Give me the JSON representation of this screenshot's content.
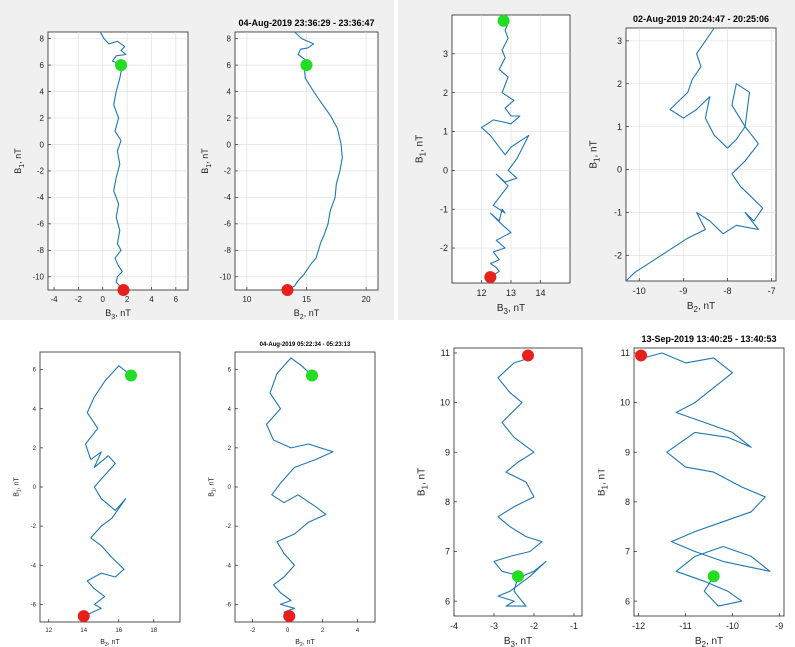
{
  "colors": {
    "trace": "#1f77b4",
    "start_marker": "#22dd22",
    "end_marker": "#e8201c",
    "grid": "#dcdcdc",
    "frame": "#262626"
  },
  "chart_data": [
    {
      "type": "line",
      "title": "",
      "xlabel": "B3, nT",
      "x_axis_base": "B",
      "x_axis_sub": "3",
      "x_axis_unit": ", nT",
      "ylabel": "B1, nT",
      "y_axis_base": "B",
      "y_axis_sub": "1",
      "y_axis_unit": ", nT",
      "xlim": [
        -4.5,
        7
      ],
      "ylim": [
        -11,
        8.5
      ],
      "xticks": [
        "-4",
        "-2",
        "0",
        "2",
        "4",
        "6"
      ],
      "xtick_values": [
        -4,
        -2,
        0,
        2,
        4,
        6
      ],
      "yticks": [
        "-10",
        "-8",
        "-6",
        "-4",
        "-2",
        "0",
        "2",
        "4",
        "6",
        "8"
      ],
      "ytick_values": [
        -10,
        -8,
        -6,
        -4,
        -2,
        0,
        2,
        4,
        6,
        8
      ],
      "grid": true,
      "series": [
        {
          "x": [
            -0.2,
            0.1,
            0.5,
            1.2,
            1.8,
            1.5,
            1.9,
            1.1,
            0.8,
            1.6,
            1.4,
            1.1,
            0.9,
            1.3,
            1.0,
            1.5,
            1.2,
            1.4,
            1.1,
            0.9,
            1.3,
            1.1,
            1.4,
            1.2,
            1.5,
            1.0,
            1.3,
            1.6,
            1.2,
            1.1,
            1.5,
            1.7
          ],
          "y": [
            8.5,
            8.0,
            7.6,
            7.8,
            7.4,
            7.1,
            6.8,
            6.7,
            6.3,
            6.0,
            5.0,
            4.0,
            3.0,
            2.0,
            1.0,
            0.3,
            -0.5,
            -1.5,
            -2.5,
            -3.5,
            -4.5,
            -5.5,
            -6.5,
            -7.5,
            -8.0,
            -8.6,
            -9.2,
            -9.6,
            -10.0,
            -10.4,
            -10.8,
            -11.1
          ]
        }
      ],
      "start_point": [
        1.5,
        6.0
      ],
      "end_point": [
        1.7,
        -11.0
      ]
    },
    {
      "type": "line",
      "title": "04-Aug-2019 23:36:29 - 23:36:47",
      "xlabel": "B2, nT",
      "x_axis_base": "B",
      "x_axis_sub": "2",
      "x_axis_unit": ", nT",
      "ylabel": "B1, nT",
      "y_axis_base": "B",
      "y_axis_sub": "1",
      "y_axis_unit": ", nT",
      "xlim": [
        9,
        21
      ],
      "ylim": [
        -11,
        8.5
      ],
      "xticks": [
        "10",
        "15",
        "20"
      ],
      "xtick_values": [
        10,
        15,
        20
      ],
      "yticks": [
        "-10",
        "-8",
        "-6",
        "-4",
        "-2",
        "0",
        "2",
        "4",
        "6",
        "8"
      ],
      "ytick_values": [
        -10,
        -8,
        -6,
        -4,
        -2,
        0,
        2,
        4,
        6,
        8
      ],
      "grid": true,
      "series": [
        {
          "x": [
            14.0,
            14.6,
            15.6,
            15.1,
            14.5,
            14.3,
            15.2,
            14.8,
            14.9,
            15.6,
            16.2,
            17.0,
            17.6,
            17.9,
            18.0,
            17.8,
            17.5,
            17.4,
            17.0,
            16.8,
            16.5,
            16.2,
            16.0,
            15.8,
            15.4,
            15.1,
            14.8,
            14.5,
            14.2,
            14.0,
            13.4
          ],
          "y": [
            8.5,
            8.0,
            7.6,
            7.3,
            7.2,
            6.8,
            6.2,
            6.0,
            5.0,
            4.0,
            3.2,
            2.2,
            1.2,
            0.0,
            -1.0,
            -2.0,
            -3.0,
            -4.0,
            -5.0,
            -6.0,
            -6.8,
            -7.4,
            -8.0,
            -8.6,
            -9.0,
            -9.4,
            -9.8,
            -10.1,
            -10.4,
            -10.7,
            -11.0
          ]
        }
      ],
      "start_point": [
        15.0,
        6.0
      ],
      "end_point": [
        13.4,
        -11.0
      ]
    },
    {
      "type": "line",
      "title": "",
      "xlabel": "B3, nT",
      "x_axis_base": "B",
      "x_axis_sub": "3",
      "x_axis_unit": ", nT",
      "ylabel": "B1, nT",
      "y_axis_base": "B",
      "y_axis_sub": "1",
      "y_axis_unit": ", nT",
      "xlim": [
        11.0,
        15.0
      ],
      "ylim": [
        -2.9,
        4.0
      ],
      "xticks": [
        "12",
        "13",
        "14"
      ],
      "xtick_values": [
        12,
        13,
        14
      ],
      "yticks": [
        "-2",
        "-1",
        "0",
        "1",
        "2",
        "3"
      ],
      "ytick_values": [
        -2,
        -1,
        0,
        1,
        2,
        3
      ],
      "grid": true,
      "series": [
        {
          "x": [
            12.9,
            12.8,
            12.9,
            12.7,
            12.8,
            12.6,
            12.9,
            12.7,
            13.1,
            12.8,
            13.0,
            13.3,
            13.0,
            12.4,
            12.0,
            12.3,
            12.6,
            12.8,
            13.0,
            13.6,
            13.2,
            12.9,
            13.2,
            12.8,
            12.5,
            12.9,
            12.7,
            12.4,
            12.8,
            12.7,
            12.6,
            12.3,
            12.7,
            13.0,
            12.5,
            12.8,
            12.4,
            12.6,
            12.3,
            12.5,
            12.6,
            12.4,
            12.2,
            12.4
          ],
          "y": [
            3.8,
            3.6,
            3.4,
            3.1,
            2.9,
            2.6,
            2.4,
            2.0,
            1.8,
            1.6,
            1.4,
            1.4,
            1.2,
            1.3,
            1.1,
            0.9,
            0.6,
            0.4,
            0.6,
            0.9,
            0.3,
            0.0,
            -0.2,
            -0.3,
            -0.1,
            -0.4,
            -0.6,
            -0.9,
            -1.1,
            -1.0,
            -1.3,
            -1.1,
            -1.4,
            -1.6,
            -1.8,
            -2.0,
            -2.1,
            -2.3,
            -2.4,
            -2.5,
            -2.6,
            -2.7,
            -2.7,
            -2.8
          ]
        }
      ],
      "start_point": [
        12.75,
        3.85
      ],
      "end_point": [
        12.3,
        -2.75
      ]
    },
    {
      "type": "line",
      "title": "02-Aug-2019 20:24:47 - 20:25:06",
      "xlabel": "B2, nT",
      "x_axis_base": "B",
      "x_axis_sub": "2",
      "x_axis_unit": ", nT",
      "ylabel": "B1, nT",
      "y_axis_base": "B",
      "y_axis_sub": "1",
      "y_axis_unit": ", nT",
      "xlim": [
        -10.3,
        -6.9
      ],
      "ylim": [
        -2.6,
        3.3
      ],
      "xticks": [
        "-10",
        "-9",
        "-8",
        "-7"
      ],
      "xtick_values": [
        -10,
        -9,
        -8,
        -7
      ],
      "yticks": [
        "-2",
        "-1",
        "0",
        "1",
        "2",
        "3"
      ],
      "ytick_values": [
        -2,
        -1,
        0,
        1,
        2,
        3
      ],
      "grid": true,
      "series": [
        {
          "x": [
            -8.3,
            -8.5,
            -8.7,
            -8.6,
            -8.8,
            -8.9,
            -9.1,
            -9.3,
            -9.0,
            -8.7,
            -8.4,
            -8.5,
            -8.3,
            -8.0,
            -7.8,
            -7.6,
            -7.5,
            -7.8,
            -7.9,
            -7.6,
            -7.3,
            -7.6,
            -7.9,
            -7.7,
            -7.5,
            -7.2,
            -7.4,
            -7.6,
            -7.3,
            -7.8,
            -8.1,
            -8.4,
            -8.7,
            -8.5,
            -8.9,
            -9.2,
            -9.5,
            -9.8,
            -10.1,
            -10.3
          ],
          "y": [
            3.3,
            3.0,
            2.7,
            2.4,
            2.1,
            1.8,
            1.6,
            1.4,
            1.2,
            1.4,
            1.7,
            1.2,
            0.8,
            0.5,
            0.7,
            1.0,
            1.8,
            2.0,
            1.5,
            1.0,
            0.6,
            0.2,
            -0.1,
            -0.4,
            -0.6,
            -0.9,
            -1.2,
            -1.0,
            -1.4,
            -1.3,
            -1.5,
            -1.2,
            -1.0,
            -1.4,
            -1.6,
            -1.8,
            -2.0,
            -2.2,
            -2.4,
            -2.6
          ]
        }
      ],
      "start_point": null,
      "end_point": null
    },
    {
      "type": "line",
      "title": "",
      "xlabel": "B3, nT",
      "x_axis_base": "B",
      "x_axis_sub": "3",
      "x_axis_unit": ", nT",
      "ylabel": "B1, nT",
      "y_axis_base": "B",
      "y_axis_sub": "1",
      "y_axis_unit": ", nT",
      "xlim": [
        11.5,
        19.5
      ],
      "ylim": [
        -6.9,
        6.9
      ],
      "xticks": [
        "12",
        "14",
        "16",
        "18"
      ],
      "xtick_values": [
        12,
        14,
        16,
        18
      ],
      "yticks": [
        "-6",
        "-4",
        "-2",
        "0",
        "2",
        "4",
        "6"
      ],
      "ytick_values": [
        -6,
        -4,
        -2,
        0,
        2,
        4,
        6
      ],
      "grid": false,
      "series": [
        {
          "x": [
            16.7,
            16.0,
            15.2,
            14.6,
            14.2,
            14.8,
            14.1,
            14.4,
            15.0,
            14.6,
            15.4,
            15.8,
            15.2,
            14.6,
            15.0,
            15.8,
            16.4,
            15.6,
            15.0,
            14.4,
            15.0,
            15.6,
            16.3,
            15.8,
            15.0,
            14.2,
            14.6,
            15.2,
            14.6,
            15.0,
            14.5,
            14.0,
            14.2
          ],
          "y": [
            5.7,
            6.2,
            5.4,
            4.6,
            3.8,
            3.0,
            2.2,
            1.4,
            1.8,
            1.0,
            1.6,
            1.2,
            0.6,
            0.0,
            -0.6,
            -1.2,
            -0.6,
            -1.6,
            -2.0,
            -2.6,
            -3.0,
            -3.6,
            -4.2,
            -4.6,
            -4.4,
            -4.8,
            -5.2,
            -5.6,
            -6.0,
            -6.2,
            -6.4,
            -6.6,
            -6.6
          ]
        }
      ],
      "start_point": [
        16.7,
        5.7
      ],
      "end_point": [
        14.0,
        -6.6
      ]
    },
    {
      "type": "line",
      "title": "04-Aug-2019 05:22:34 - 05:23:13",
      "xlabel": "B2, nT",
      "x_axis_base": "B",
      "x_axis_sub": "2",
      "x_axis_unit": ", nT",
      "ylabel": "B1, nT",
      "y_axis_base": "B",
      "y_axis_sub": "1",
      "y_axis_unit": ", nT",
      "xlim": [
        -3,
        5
      ],
      "ylim": [
        -6.9,
        6.9
      ],
      "xticks": [
        "-2",
        "0",
        "2",
        "4"
      ],
      "xtick_values": [
        -2,
        0,
        2,
        4
      ],
      "yticks": [
        "-6",
        "-4",
        "-2",
        "0",
        "2",
        "4",
        "6"
      ],
      "ytick_values": [
        -6,
        -4,
        -2,
        0,
        2,
        4,
        6
      ],
      "grid": false,
      "series": [
        {
          "x": [
            1.4,
            0.8,
            0.2,
            -0.6,
            -1.0,
            -0.4,
            -1.2,
            -0.8,
            0.2,
            1.2,
            2.6,
            1.6,
            0.4,
            -0.4,
            -0.9,
            -0.2,
            0.6,
            1.6,
            2.2,
            1.2,
            0.4,
            -0.6,
            -0.2,
            0.4,
            -0.2,
            -0.8,
            -0.4,
            0.2,
            -0.4,
            0.4,
            -0.2,
            0.2,
            0.1
          ],
          "y": [
            5.7,
            6.2,
            6.6,
            5.8,
            4.8,
            4.0,
            3.2,
            2.4,
            2.0,
            2.2,
            1.8,
            1.4,
            1.0,
            0.2,
            -0.4,
            -0.8,
            -0.4,
            -1.0,
            -1.4,
            -1.8,
            -2.4,
            -2.8,
            -3.4,
            -4.0,
            -4.6,
            -5.0,
            -5.4,
            -5.8,
            -6.0,
            -6.2,
            -6.4,
            -6.6,
            -6.6
          ]
        }
      ],
      "start_point": [
        1.4,
        5.7
      ],
      "end_point": [
        0.1,
        -6.6
      ]
    },
    {
      "type": "line",
      "title": "",
      "xlabel": "B3, nT",
      "x_axis_base": "B",
      "x_axis_sub": "3",
      "x_axis_unit": ", nT",
      "ylabel": "B1, nT",
      "y_axis_base": "B",
      "y_axis_sub": "1",
      "y_axis_unit": ", nT",
      "xlim": [
        -4,
        -0.8
      ],
      "ylim": [
        5.7,
        11.1
      ],
      "xticks": [
        "-4",
        "-3",
        "-2",
        "-1"
      ],
      "xtick_values": [
        -4,
        -3,
        -2,
        -1
      ],
      "yticks": [
        "6",
        "7",
        "8",
        "9",
        "10",
        "11"
      ],
      "ytick_values": [
        6,
        7,
        8,
        9,
        10,
        11
      ],
      "grid": false,
      "series": [
        {
          "x": [
            -2.1,
            -2.5,
            -2.9,
            -2.6,
            -2.3,
            -2.8,
            -2.5,
            -2.0,
            -2.4,
            -2.7,
            -2.2,
            -2.0,
            -2.5,
            -2.9,
            -2.6,
            -2.2,
            -1.8,
            -2.1,
            -2.6,
            -3.0,
            -2.8,
            -2.3,
            -2.0,
            -1.7,
            -2.1,
            -2.6,
            -2.9,
            -2.5,
            -2.7,
            -2.2,
            -2.5,
            -2.4
          ],
          "y": [
            10.9,
            10.8,
            10.5,
            10.2,
            10.0,
            9.6,
            9.3,
            9.0,
            8.8,
            8.6,
            8.4,
            8.1,
            7.9,
            7.7,
            7.5,
            7.3,
            7.2,
            7.0,
            6.9,
            6.8,
            6.6,
            6.5,
            6.6,
            6.8,
            6.5,
            6.2,
            6.1,
            6.0,
            5.9,
            5.9,
            6.2,
            6.5
          ]
        }
      ],
      "start_point": [
        -2.4,
        6.5
      ],
      "end_point": [
        -2.15,
        10.95
      ]
    },
    {
      "type": "line",
      "title": "13-Sep-2019 13:40:25 - 13:40:53",
      "xlabel": "B2, nT",
      "x_axis_base": "B",
      "x_axis_sub": "2",
      "x_axis_unit": ", nT",
      "ylabel": "B1, nT",
      "y_axis_base": "B",
      "y_axis_sub": "1",
      "y_axis_unit": ", nT",
      "xlim": [
        -12.1,
        -8.9
      ],
      "ylim": [
        5.7,
        11.1
      ],
      "xticks": [
        "-12",
        "-11",
        "-10",
        "-9"
      ],
      "xtick_values": [
        -12,
        -11,
        -10,
        -9
      ],
      "yticks": [
        "6",
        "7",
        "8",
        "9",
        "10",
        "11"
      ],
      "ytick_values": [
        6,
        7,
        8,
        9,
        10,
        11
      ],
      "grid": false,
      "series": [
        {
          "x": [
            -11.9,
            -11.5,
            -11.0,
            -10.4,
            -10.0,
            -10.4,
            -10.8,
            -11.2,
            -10.6,
            -10.0,
            -9.6,
            -10.1,
            -10.8,
            -11.4,
            -11.0,
            -10.4,
            -9.8,
            -9.3,
            -9.6,
            -10.2,
            -10.8,
            -11.3,
            -10.8,
            -10.2,
            -9.7,
            -9.2,
            -9.6,
            -10.2,
            -10.8,
            -11.2,
            -10.6,
            -10.1,
            -9.8,
            -10.3,
            -10.6,
            -10.4
          ],
          "y": [
            10.9,
            11.0,
            10.8,
            10.9,
            10.6,
            10.3,
            10.0,
            9.8,
            9.6,
            9.4,
            9.1,
            9.3,
            9.4,
            9.0,
            8.7,
            8.6,
            8.3,
            8.1,
            7.8,
            7.6,
            7.4,
            7.2,
            7.0,
            6.8,
            6.7,
            6.6,
            6.9,
            7.1,
            6.9,
            6.6,
            6.4,
            6.2,
            6.0,
            5.9,
            6.2,
            6.5
          ]
        }
      ],
      "start_point": [
        -10.4,
        6.5
      ],
      "end_point": [
        -11.95,
        10.95
      ]
    }
  ]
}
